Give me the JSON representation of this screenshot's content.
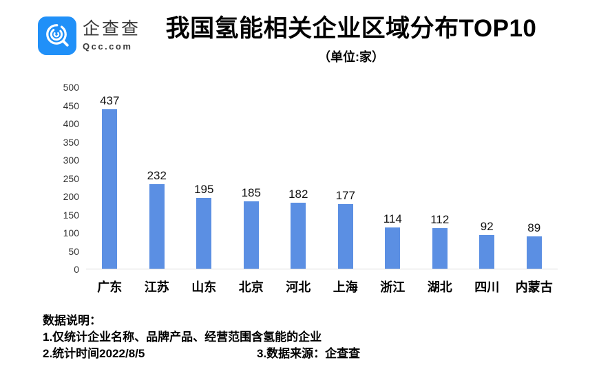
{
  "header": {
    "brand_name": "企查查",
    "brand_domain": "Qcc.com",
    "title": "我国氢能相关企业区域分布TOP10",
    "subtitle": "（单位:家）"
  },
  "chart_data": {
    "type": "bar",
    "title": "我国氢能相关企业区域分布TOP10",
    "unit_label": "（单位:家）",
    "categories": [
      "广东",
      "江苏",
      "山东",
      "北京",
      "河北",
      "上海",
      "浙江",
      "湖北",
      "四川",
      "内蒙古"
    ],
    "values": [
      437,
      232,
      195,
      185,
      182,
      177,
      114,
      112,
      92,
      89
    ],
    "xlabel": "",
    "ylabel": "",
    "ylim": [
      0,
      500
    ],
    "ytick_step": 50,
    "grid": false,
    "legend": false,
    "data_labels": true,
    "bar_color": "#5B8FE3"
  },
  "footer": {
    "heading": "数据说明：",
    "note1": "1.仅统计企业名称、品牌产品、经营范围含氢能的企业",
    "note2": "2.统计时间2022/8/5",
    "note3": "3.数据来源：企查查"
  },
  "colors": {
    "bar": "#5B8FE3",
    "logo_blue": "#2090F8",
    "axis_line": "#D9D9D9",
    "brand_text": "#3A3A3A",
    "text": "#000000"
  }
}
